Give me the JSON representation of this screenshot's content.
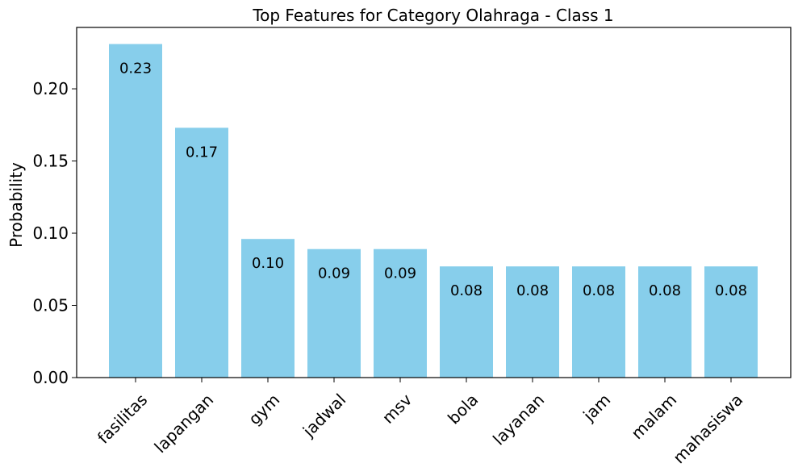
{
  "chart_data": {
    "type": "bar",
    "title": "Top Features for Category Olahraga - Class 1",
    "xlabel": "",
    "ylabel": "Probability",
    "categories": [
      "fasilitas",
      "lapangan",
      "gym",
      "jadwal",
      "msv",
      "bola",
      "layanan",
      "jam",
      "malam",
      "mahasiswa"
    ],
    "values": [
      0.231,
      0.173,
      0.096,
      0.089,
      0.089,
      0.077,
      0.077,
      0.077,
      0.077,
      0.077
    ],
    "data_labels": [
      "0.23",
      "0.17",
      "0.10",
      "0.09",
      "0.09",
      "0.08",
      "0.08",
      "0.08",
      "0.08",
      "0.08"
    ],
    "ylim": [
      0,
      0.2425
    ],
    "yticks": [
      0.0,
      0.05,
      0.1,
      0.15,
      0.2
    ],
    "ytick_labels": [
      "0.00",
      "0.05",
      "0.10",
      "0.15",
      "0.20"
    ],
    "bar_color": "#87ceeb",
    "grid": false,
    "xtick_rotation": 45
  }
}
